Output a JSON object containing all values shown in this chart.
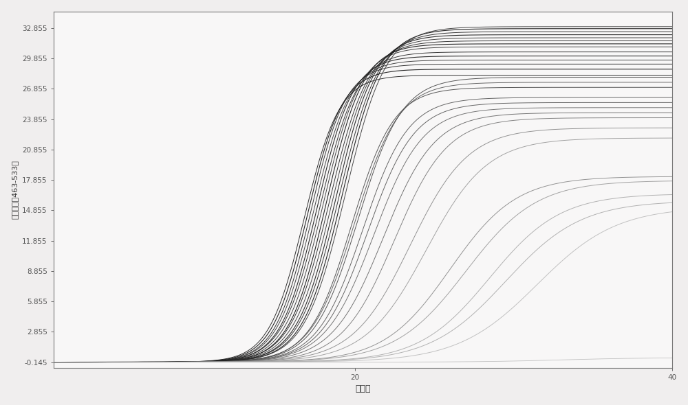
{
  "xlabel": "循环数",
  "ylabel": "荆光信号（463-533）",
  "xlim": [
    1,
    40
  ],
  "ylim": [
    -0.7,
    34.5
  ],
  "yticks": [
    -0.145,
    2.855,
    5.855,
    8.855,
    11.855,
    14.855,
    17.855,
    20.855,
    23.855,
    26.855,
    29.855,
    32.855
  ],
  "xticks": [
    20,
    40
  ],
  "background_color": "#f0eeee",
  "plot_bg": "#f8f7f7",
  "curves": [
    {
      "midpoint": 16.8,
      "plateau": 28.2,
      "steepness": 0.9,
      "color": "#1a1a1a",
      "lw": 0.7
    },
    {
      "midpoint": 17.0,
      "plateau": 28.8,
      "steepness": 0.9,
      "color": "#111111",
      "lw": 0.8
    },
    {
      "midpoint": 17.2,
      "plateau": 29.3,
      "steepness": 0.9,
      "color": "#222222",
      "lw": 0.7
    },
    {
      "midpoint": 17.4,
      "plateau": 29.7,
      "steepness": 0.88,
      "color": "#333333",
      "lw": 0.7
    },
    {
      "midpoint": 17.6,
      "plateau": 30.1,
      "steepness": 0.88,
      "color": "#1a1a1a",
      "lw": 0.8
    },
    {
      "midpoint": 17.8,
      "plateau": 30.5,
      "steepness": 0.85,
      "color": "#222222",
      "lw": 0.7
    },
    {
      "midpoint": 18.0,
      "plateau": 31.0,
      "steepness": 0.85,
      "color": "#333333",
      "lw": 0.7
    },
    {
      "midpoint": 18.2,
      "plateau": 31.3,
      "steepness": 0.85,
      "color": "#111111",
      "lw": 0.8
    },
    {
      "midpoint": 18.4,
      "plateau": 31.6,
      "steepness": 0.82,
      "color": "#222222",
      "lw": 0.7
    },
    {
      "midpoint": 18.6,
      "plateau": 31.9,
      "steepness": 0.82,
      "color": "#333333",
      "lw": 0.7
    },
    {
      "midpoint": 18.8,
      "plateau": 32.2,
      "steepness": 0.82,
      "color": "#1a1a1a",
      "lw": 0.8
    },
    {
      "midpoint": 19.0,
      "plateau": 32.5,
      "steepness": 0.8,
      "color": "#222222",
      "lw": 0.7
    },
    {
      "midpoint": 19.2,
      "plateau": 32.8,
      "steepness": 0.8,
      "color": "#111111",
      "lw": 0.8
    },
    {
      "midpoint": 19.4,
      "plateau": 33.0,
      "steepness": 0.78,
      "color": "#333333",
      "lw": 0.7
    },
    {
      "midpoint": 19.8,
      "plateau": 27.0,
      "steepness": 0.75,
      "color": "#444444",
      "lw": 0.7
    },
    {
      "midpoint": 20.0,
      "plateau": 27.5,
      "steepness": 0.72,
      "color": "#555555",
      "lw": 0.7
    },
    {
      "midpoint": 20.2,
      "plateau": 28.0,
      "steepness": 0.72,
      "color": "#444444",
      "lw": 0.7
    },
    {
      "midpoint": 20.5,
      "plateau": 26.0,
      "steepness": 0.7,
      "color": "#555555",
      "lw": 0.7
    },
    {
      "midpoint": 20.8,
      "plateau": 25.5,
      "steepness": 0.68,
      "color": "#555555",
      "lw": 0.7
    },
    {
      "midpoint": 21.2,
      "plateau": 25.0,
      "steepness": 0.65,
      "color": "#666666",
      "lw": 0.7
    },
    {
      "midpoint": 21.8,
      "plateau": 24.5,
      "steepness": 0.62,
      "color": "#666666",
      "lw": 0.7
    },
    {
      "midpoint": 22.5,
      "plateau": 24.0,
      "steepness": 0.6,
      "color": "#777777",
      "lw": 0.7
    },
    {
      "midpoint": 23.5,
      "plateau": 23.0,
      "steepness": 0.55,
      "color": "#888888",
      "lw": 0.7
    },
    {
      "midpoint": 24.5,
      "plateau": 22.0,
      "steepness": 0.52,
      "color": "#999999",
      "lw": 0.7
    },
    {
      "midpoint": 26.0,
      "plateau": 18.2,
      "steepness": 0.48,
      "color": "#888888",
      "lw": 0.7
    },
    {
      "midpoint": 27.0,
      "plateau": 17.8,
      "steepness": 0.45,
      "color": "#999999",
      "lw": 0.7
    },
    {
      "midpoint": 28.5,
      "plateau": 16.5,
      "steepness": 0.45,
      "color": "#aaaaaa",
      "lw": 0.7
    },
    {
      "midpoint": 29.5,
      "plateau": 15.8,
      "steepness": 0.42,
      "color": "#aaaaaa",
      "lw": 0.7
    },
    {
      "midpoint": 31.5,
      "plateau": 15.2,
      "steepness": 0.4,
      "color": "#bbbbbb",
      "lw": 0.7
    },
    {
      "midpoint": 33.0,
      "plateau": 0.3,
      "steepness": 0.38,
      "color": "#bbbbbb",
      "lw": 0.6
    }
  ]
}
